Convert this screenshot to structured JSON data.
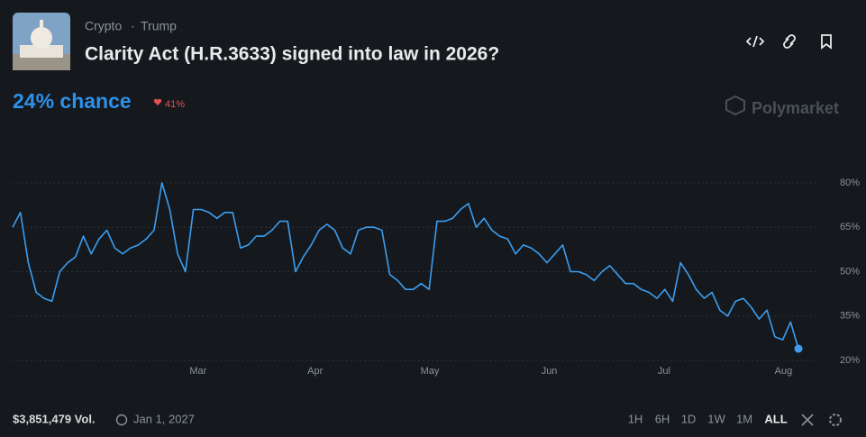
{
  "header": {
    "category": "Crypto",
    "separator": "·",
    "tag": "Trump",
    "title": "Clarity Act (H.R.3633) signed into law in 2026?",
    "chance": "24% chance",
    "change": "41%",
    "brand": "Polymarket"
  },
  "footer": {
    "volume": "$3,851,479 Vol.",
    "end_date": "Jan 1, 2027",
    "ranges": [
      "1H",
      "6H",
      "1D",
      "1W",
      "1M",
      "ALL"
    ]
  },
  "chart_data": {
    "type": "line",
    "color": "#3c9df0",
    "grid": true,
    "values": [
      65,
      70,
      53,
      43,
      41,
      40,
      50,
      53,
      55,
      62,
      56,
      61,
      64,
      58,
      56,
      58,
      59,
      61,
      64,
      80,
      71,
      56,
      50,
      71,
      71,
      70,
      68,
      70,
      70,
      58,
      59,
      62,
      62,
      64,
      67,
      67,
      50,
      55,
      59,
      64,
      66,
      64,
      58,
      56,
      64,
      65,
      65,
      64,
      49,
      47,
      44,
      44,
      46,
      44,
      67,
      67,
      68,
      71,
      73,
      65,
      68,
      64,
      62,
      61,
      56,
      59,
      58,
      56,
      53,
      56,
      59,
      50,
      50,
      49,
      47,
      50,
      52,
      49,
      46,
      46,
      44,
      43,
      41,
      44,
      40,
      53,
      49,
      44,
      41,
      43,
      37,
      35,
      40,
      41,
      38,
      34,
      37,
      28,
      27,
      33,
      24
    ],
    "xlim": [
      0,
      100
    ],
    "xticks": [
      {
        "value": 23.6,
        "label": "Mar"
      },
      {
        "value": 38.5,
        "label": "Apr"
      },
      {
        "value": 53.1,
        "label": "May"
      },
      {
        "value": 68.3,
        "label": "Jun"
      },
      {
        "value": 82.9,
        "label": "Jul"
      },
      {
        "value": 98.1,
        "label": "Aug"
      }
    ],
    "ylim": [
      17,
      90
    ],
    "yticks": [
      {
        "value": 20,
        "label": "20%"
      },
      {
        "value": 35,
        "label": "35%"
      },
      {
        "value": 50,
        "label": "50%"
      },
      {
        "value": 65,
        "label": "65%"
      },
      {
        "value": 80,
        "label": "80%"
      }
    ]
  }
}
